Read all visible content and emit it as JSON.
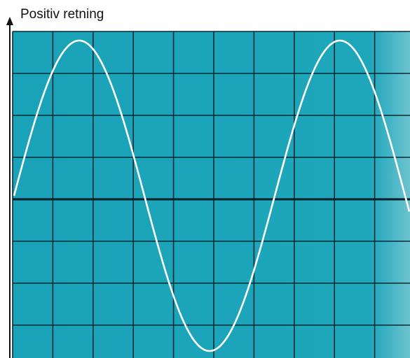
{
  "label": "Positiv retning"
}
